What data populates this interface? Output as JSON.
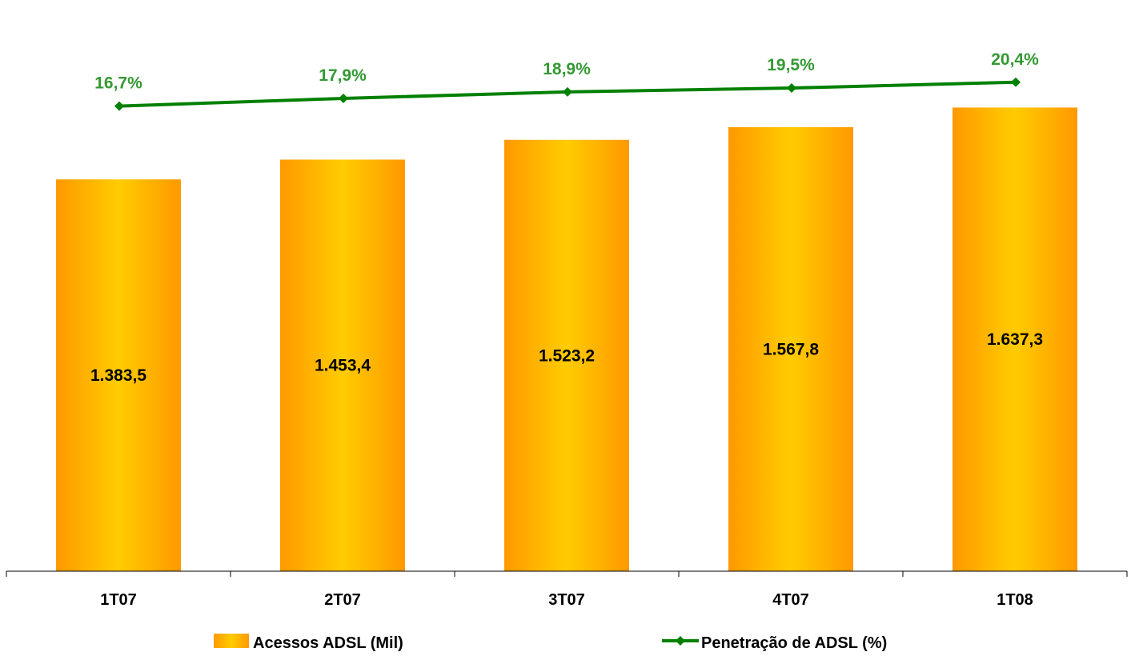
{
  "chart_data": {
    "type": "bar",
    "categories": [
      "1T07",
      "2T07",
      "3T07",
      "4T07",
      "1T08"
    ],
    "series": [
      {
        "name": "Acessos ADSL (Mil)",
        "type": "bar",
        "values": [
          1383.5,
          1453.4,
          1523.2,
          1567.8,
          1637.3
        ],
        "labels": [
          "1.383,5",
          "1.453,4",
          "1.523,2",
          "1.567,8",
          "1.637,3"
        ]
      },
      {
        "name": "Penetração de ADSL (%)",
        "type": "line",
        "values": [
          16.7,
          17.9,
          18.9,
          19.5,
          20.4
        ],
        "labels": [
          "16,7%",
          "17,9%",
          "18,9%",
          "19,5%",
          "20,4%"
        ]
      }
    ],
    "legend_position": "bottom",
    "grid": false
  },
  "colors": {
    "bar_edge": "#ff9900",
    "bar_center": "#ffcc00",
    "line": "#008000",
    "label_line": "#339933",
    "axis": "#000000",
    "text": "#000000"
  }
}
